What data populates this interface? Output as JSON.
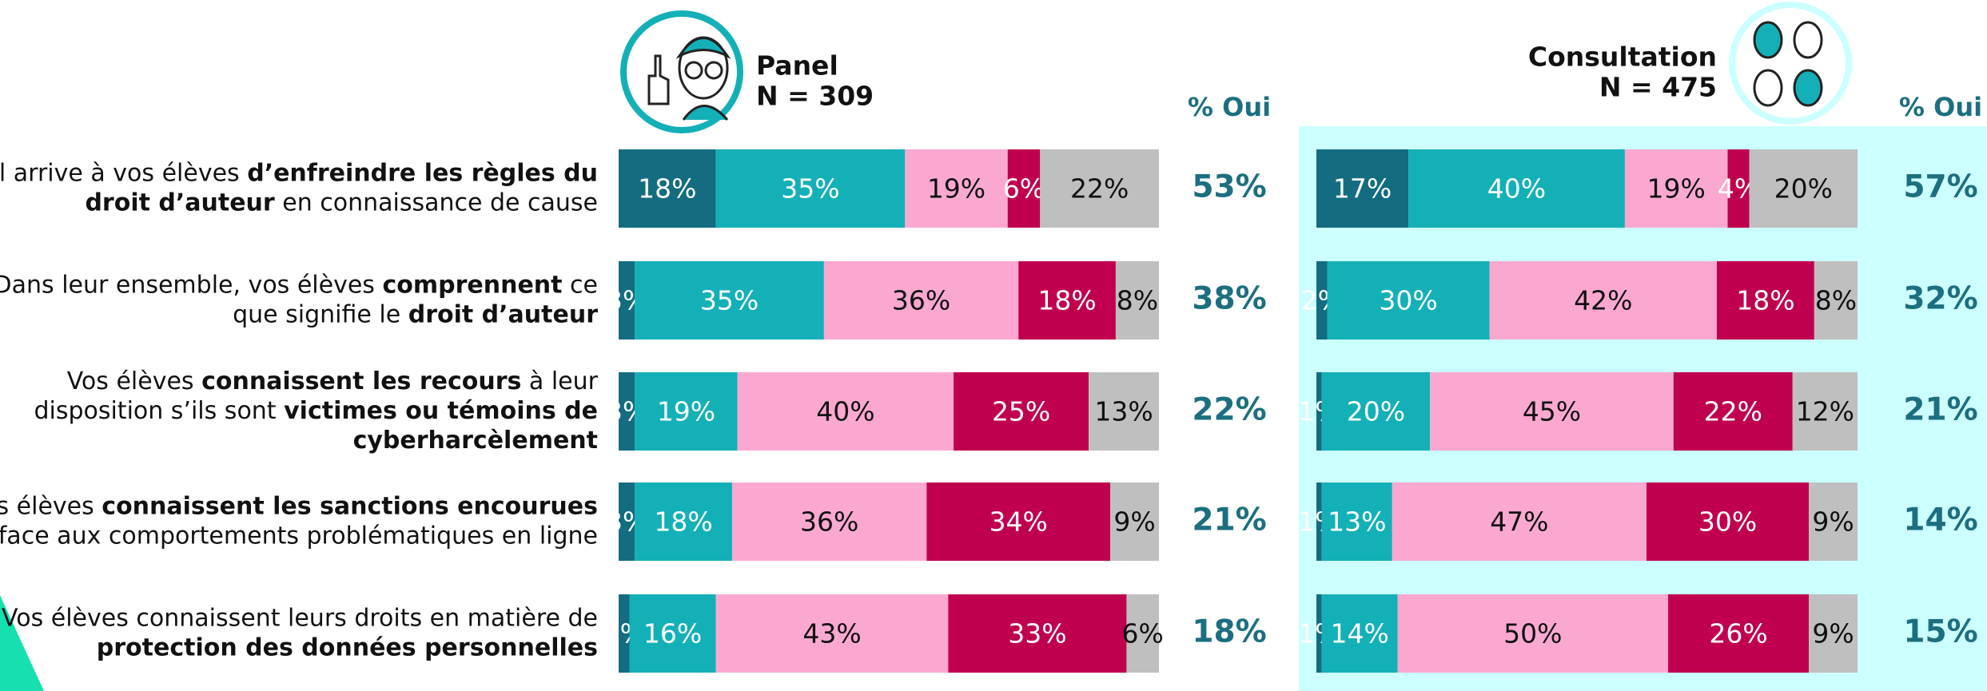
{
  "row_labels": [
    [
      [
        {
          "text": "Il arrive à vos élèves "
        },
        {
          "text": "d’enfreindre les règles du",
          "bold": true
        }
      ],
      [
        {
          "text": "droit d’auteur",
          "bold": true
        },
        {
          "text": " en connaissance de cause"
        }
      ]
    ],
    [
      [
        {
          "text": "Dans leur ensemble, vos élèves "
        },
        {
          "text": "comprennent",
          "bold": true
        },
        {
          "text": " ce"
        }
      ],
      [
        {
          "text": "que signifie le "
        },
        {
          "text": "droit d’auteur",
          "bold": true
        }
      ]
    ],
    [
      [
        {
          "text": "Vos élèves "
        },
        {
          "text": "connaissent les recours",
          "bold": true
        },
        {
          "text": " à leur"
        }
      ],
      [
        {
          "text": "disposition s’ils sont "
        },
        {
          "text": "victimes ou témoins de",
          "bold": true
        }
      ],
      [
        {
          "text": "cyberharcèlement",
          "bold": true
        }
      ]
    ],
    [
      [
        {
          "text": "Vos élèves "
        },
        {
          "text": "connaissent les sanctions encourues",
          "bold": true
        }
      ],
      [
        {
          "text": "face aux comportements problématiques en ligne"
        }
      ]
    ],
    [
      [
        {
          "text": "Vos élèves connaissent leurs droits en matière de"
        }
      ],
      [
        {
          "text": "protection des données personnelles",
          "bold": true
        }
      ]
    ]
  ],
  "chart_data": [
    {
      "type": "bar",
      "orientation": "horizontal",
      "stacked": true,
      "title": "Panel",
      "subtitle": "N = 309",
      "xlim": [
        0,
        100
      ],
      "series": [
        {
          "color": "#136c80",
          "values": [
            18,
            3,
            3,
            3,
            2
          ],
          "value_labels": [
            "18%",
            "3%",
            "3%",
            "3%",
            "2%"
          ]
        },
        {
          "color": "#14b0b8",
          "values": [
            35,
            35,
            19,
            18,
            16
          ],
          "value_labels": [
            "35%",
            "35%",
            "19%",
            "18%",
            "16%"
          ]
        },
        {
          "color": "#fba8d0",
          "values": [
            19,
            36,
            40,
            36,
            43
          ],
          "value_labels": [
            "19%",
            "36%",
            "40%",
            "36%",
            "43%"
          ]
        },
        {
          "color": "#c0004f",
          "values": [
            6,
            18,
            25,
            34,
            33
          ],
          "value_labels": [
            "6%",
            "18%",
            "25%",
            "34%",
            "33%"
          ]
        },
        {
          "color": "#bfbfbf",
          "values": [
            22,
            8,
            13,
            9,
            6
          ],
          "value_labels": [
            "22%",
            "8%",
            "13%",
            "9%",
            "6%"
          ]
        }
      ],
      "oui": {
        "title": "% Oui",
        "values": [
          53,
          38,
          22,
          21,
          18
        ],
        "value_labels": [
          "53%",
          "38%",
          "22%",
          "21%",
          "18%"
        ]
      }
    },
    {
      "type": "bar",
      "orientation": "horizontal",
      "stacked": true,
      "title": "Consultation",
      "subtitle": "N = 475",
      "xlim": [
        0,
        100
      ],
      "series": [
        {
          "color": "#136c80",
          "values": [
            17,
            2,
            1,
            1,
            1
          ],
          "value_labels": [
            "17%",
            "2%",
            "1%",
            "1%",
            "1%"
          ]
        },
        {
          "color": "#14b0b8",
          "values": [
            40,
            30,
            20,
            13,
            14
          ],
          "value_labels": [
            "40%",
            "30%",
            "20%",
            "13%",
            "14%"
          ]
        },
        {
          "color": "#fba8d0",
          "values": [
            19,
            42,
            45,
            47,
            50
          ],
          "value_labels": [
            "19%",
            "42%",
            "45%",
            "47%",
            "50%"
          ]
        },
        {
          "color": "#c0004f",
          "values": [
            4,
            18,
            22,
            30,
            26
          ],
          "value_labels": [
            "4%",
            "18%",
            "22%",
            "30%",
            "26%"
          ]
        },
        {
          "color": "#bfbfbf",
          "values": [
            20,
            8,
            12,
            9,
            9
          ],
          "value_labels": [
            "20%",
            "8%",
            "12%",
            "9%",
            "9%"
          ]
        }
      ],
      "oui": {
        "title": "% Oui",
        "values": [
          57,
          32,
          21,
          14,
          15
        ],
        "value_labels": [
          "57%",
          "32%",
          "21%",
          "14%",
          "15%"
        ]
      }
    }
  ]
}
